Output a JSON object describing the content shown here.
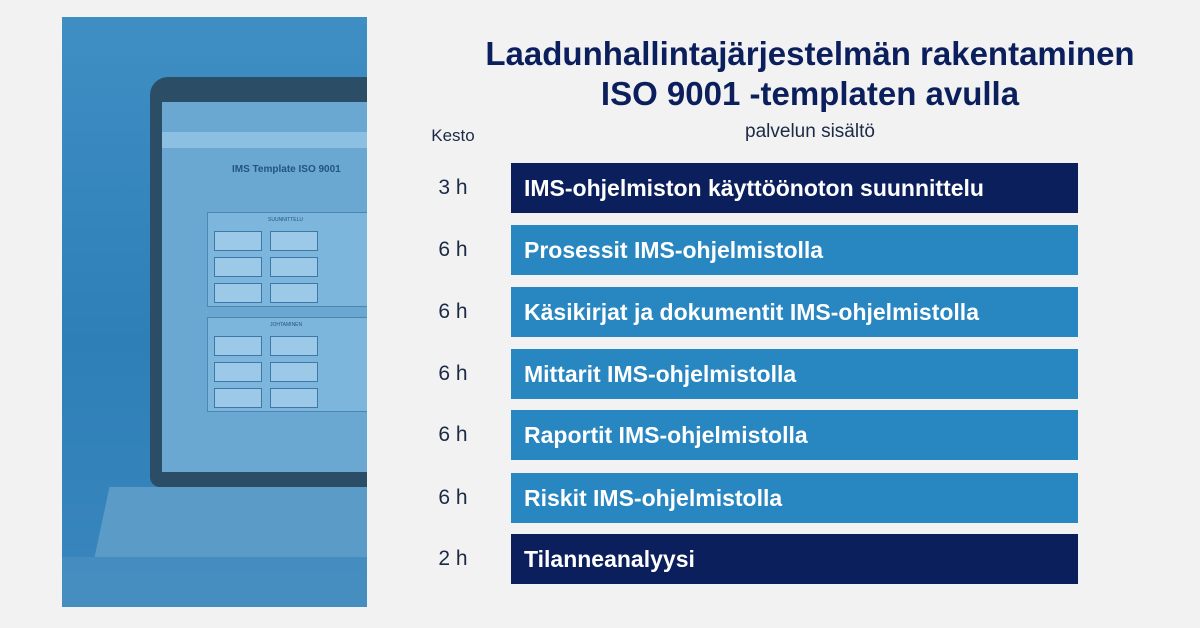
{
  "title_line1": "Laadunhallintajärjestelmän rakentaminen",
  "title_line2": "ISO 9001 -templaten avulla",
  "subtitle": "palvelun sisältö",
  "duration_header": "Kesto",
  "photo": {
    "screen_title": "IMS Template ISO 9001",
    "section_1": "SUUNNITTELU",
    "section_2": "JOHTAMINEN"
  },
  "rows": [
    {
      "duration": "3 h",
      "label": "IMS-ohjelmiston käyttöönoton suunnittelu",
      "style": "dark"
    },
    {
      "duration": "6 h",
      "label": "Prosessit IMS-ohjelmistolla",
      "style": "light"
    },
    {
      "duration": "6 h",
      "label": "Käsikirjat ja dokumentit IMS-ohjelmistolla",
      "style": "light"
    },
    {
      "duration": "6 h",
      "label": "Mittarit IMS-ohjelmistolla",
      "style": "light"
    },
    {
      "duration": "6 h",
      "label": "Raportit IMS-ohjelmistolla",
      "style": "light"
    },
    {
      "duration": "6 h",
      "label": "Riskit IMS-ohjelmistolla",
      "style": "light"
    },
    {
      "duration": "2 h",
      "label": "Tilanneanalyysi",
      "style": "dark"
    }
  ],
  "colors": {
    "dark_bar": "#0b1f5c",
    "light_bar": "#2886c1",
    "title": "#0b1f5c",
    "background": "#f2f2f2"
  }
}
